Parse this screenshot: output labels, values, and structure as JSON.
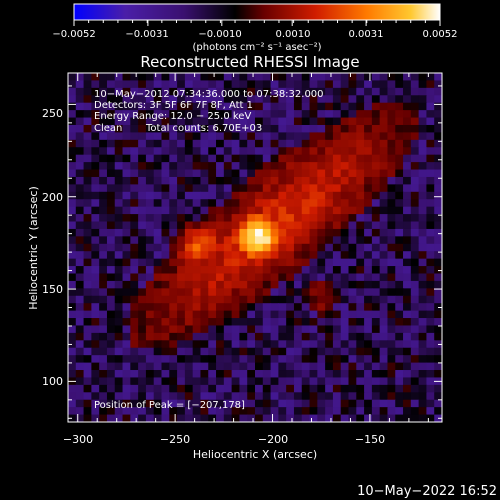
{
  "chart_data": {
    "type": "heatmap",
    "title": "Reconstructed RHESSI Image",
    "xlabel": "Heliocentric X (arcsec)",
    "ylabel": "Heliocentric Y (arcsec)",
    "xlim": [
      -305,
      -113
    ],
    "ylim": [
      78,
      267
    ],
    "x_ticks": [
      -300,
      -250,
      -200,
      -150
    ],
    "x_tick_labels": [
      "−300",
      "−250",
      "−200",
      "−150"
    ],
    "y_ticks": [
      100,
      150,
      200,
      250
    ],
    "y_tick_labels": [
      "100",
      "150",
      "200",
      "250"
    ],
    "colorbar": {
      "range": [
        -0.0052,
        0.0052
      ],
      "ticks": [
        -0.0052,
        -0.0031,
        -0.001,
        0.001,
        0.0031,
        0.0052
      ],
      "tick_labels": [
        "−0.0052",
        "−0.0031",
        "−0.0010",
        "0.0010",
        "0.0031",
        "0.0052"
      ],
      "unit_label": "(photons cm⁻² s⁻¹ asec⁻²)",
      "stops": [
        "#0000ff",
        "#4a1ea8",
        "#3a1070",
        "#000000",
        "#6a0000",
        "#d01c00",
        "#ff7a00",
        "#ffc830",
        "#ffffff"
      ]
    },
    "annotations": {
      "time_range": "10−May−2012 07:34:36.000 to 07:38:32.000",
      "detectors": "Detectors: 3F 5F 6F 7F 8F, Att 1",
      "energy_range": "Energy Range: 12.0 − 25.0 keV",
      "algorithm": "Clean",
      "total_counts": "Total counts: 6.70E+03",
      "peak_position": "Position of Peak = [−207,178]"
    },
    "peak": {
      "x": -207,
      "y": 178
    },
    "image_grid": {
      "nx": 48,
      "ny": 47
    }
  },
  "footer": {
    "timestamp": "10−May−2022 16:52"
  }
}
